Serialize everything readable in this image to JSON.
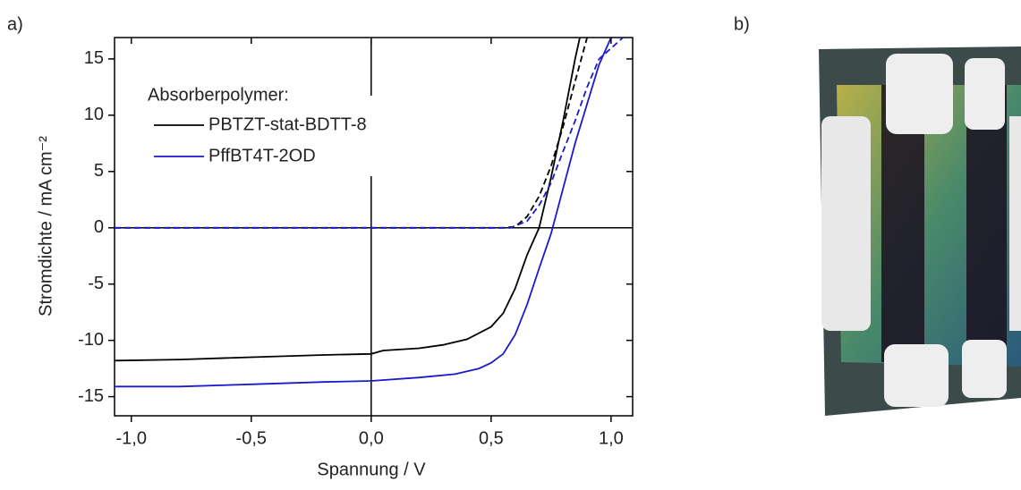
{
  "panel_labels": [
    "a)",
    "b)"
  ],
  "chart_data": {
    "type": "line",
    "xlabel": "Spannung / V",
    "ylabel": "Stromdichte / mA cm⁻²",
    "legend_title": "Absorberpolymer:",
    "legend": "upper left",
    "xlim": [
      -1.07,
      1.09
    ],
    "ylim": [
      -16.7,
      16.9
    ],
    "xticks": [
      {
        "value": -1.0,
        "label": "-1,0"
      },
      {
        "value": -0.5,
        "label": "-0,5"
      },
      {
        "value": 0.0,
        "label": "0,0"
      },
      {
        "value": 0.5,
        "label": "0,5"
      },
      {
        "value": 1.0,
        "label": "1,0"
      }
    ],
    "yticks": [
      -15,
      -10,
      -5,
      0,
      5,
      10,
      15
    ],
    "series": [
      {
        "name": "PBTZT-stat-BDTT-8",
        "color": "#000000",
        "line_style": "solid",
        "x": [
          -1.07,
          -0.8,
          -0.5,
          -0.2,
          0.0,
          0.05,
          0.2,
          0.3,
          0.4,
          0.5,
          0.55,
          0.6,
          0.65,
          0.7,
          0.75,
          0.8,
          0.85,
          0.87
        ],
        "values": [
          -11.8,
          -11.7,
          -11.5,
          -11.3,
          -11.2,
          -10.9,
          -10.7,
          -10.4,
          -9.9,
          -8.8,
          -7.6,
          -5.4,
          -2.4,
          0,
          4.5,
          9.5,
          15,
          16.9
        ]
      },
      {
        "name": "PffBT4T-2OD",
        "color": "#1a1acc",
        "line_style": "solid",
        "x": [
          -1.07,
          -0.8,
          -0.5,
          -0.2,
          0.0,
          0.2,
          0.35,
          0.45,
          0.5,
          0.55,
          0.6,
          0.65,
          0.7,
          0.75,
          0.8,
          0.85,
          0.9,
          0.95,
          1.0
        ],
        "values": [
          -14.1,
          -14.1,
          -13.9,
          -13.7,
          -13.6,
          -13.3,
          -13.0,
          -12.5,
          -12.0,
          -11.2,
          -9.5,
          -6.8,
          -3.6,
          -0.5,
          3.5,
          7.5,
          11,
          14.5,
          16.9
        ]
      },
      {
        "color": "#000000",
        "line_style": "dashed",
        "x": [
          -1.07,
          0.55,
          0.6,
          0.65,
          0.7,
          0.75,
          0.8,
          0.85,
          0.9
        ],
        "values": [
          0,
          0,
          0.1,
          1.0,
          2.8,
          5.5,
          9,
          13,
          16.9
        ]
      },
      {
        "color": "#1a1acc",
        "line_style": "dashed",
        "x": [
          -1.07,
          0.58,
          0.65,
          0.7,
          0.75,
          0.8,
          0.85,
          0.9,
          0.95,
          1.05
        ],
        "values": [
          0,
          0,
          0.6,
          2.0,
          4.0,
          6.8,
          9.5,
          12.5,
          15,
          16.9
        ]
      }
    ]
  }
}
